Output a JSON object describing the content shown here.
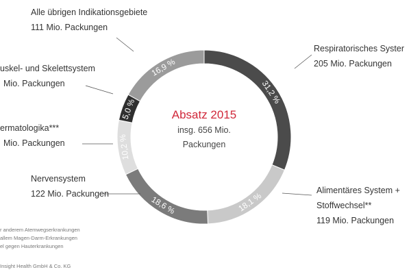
{
  "chart_data": {
    "type": "donut",
    "title": "Absatz 2015",
    "title_color": "#d0283a",
    "center_lines": [
      "insg. 656 Mio.",
      "Packungen"
    ],
    "categories": [
      "Respiratorisches Syster",
      "Alimentäres System +\nStoffwechsel**",
      "Nervensystem",
      "ermatologika***",
      "uskel- und Skelettsystem",
      "Alle übrigen Indikationsgebiete"
    ],
    "package_labels": [
      "205 Mio. Packungen",
      "119 Mio. Packungen",
      "122 Mio. Packungen",
      "Mio. Packungen",
      "Mio. Packungen",
      "111 Mio. Packungen"
    ],
    "values": [
      31.2,
      18.1,
      18.6,
      10.2,
      5.0,
      16.9
    ],
    "value_labels": [
      "31,2 %",
      "18,1 %",
      "18,6 %",
      "10,2 %",
      "5,0 %",
      "16,9 %"
    ],
    "colors": [
      "#4b4b4b",
      "#c9c9c9",
      "#7b7b7b",
      "#dedede",
      "#2f2f2f",
      "#9b9b9b"
    ],
    "footnotes": [
      "r anderem Atemwegserkrankungen",
      "allem Magen-Darm-Erkrankungen",
      "el gegen Hauterkrankungen"
    ],
    "source": "Insight Health GmbH & Co. KG"
  }
}
